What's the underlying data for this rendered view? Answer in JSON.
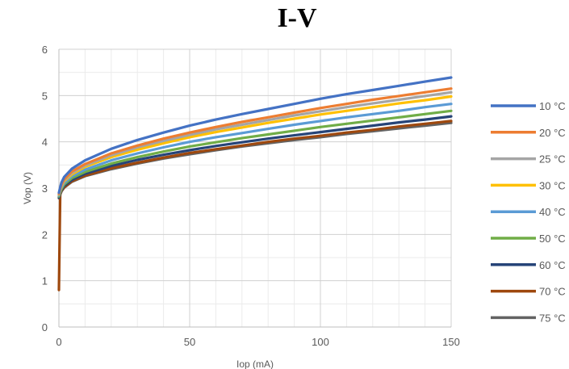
{
  "chart_data": {
    "type": "line",
    "title": "I-V",
    "xlabel": "Iop (mA)",
    "ylabel": "Vop (V)",
    "xlim": [
      0,
      150
    ],
    "ylim": [
      0,
      6
    ],
    "x_ticks": [
      "0",
      "50",
      "100",
      "150"
    ],
    "y_ticks": [
      "0",
      "1",
      "2",
      "3",
      "4",
      "5",
      "6"
    ],
    "grid": true,
    "legend_position": "right",
    "x": [
      0,
      0.5,
      1,
      2,
      5,
      10,
      20,
      30,
      40,
      50,
      60,
      70,
      80,
      90,
      100,
      110,
      120,
      130,
      140,
      150
    ],
    "series": [
      {
        "name": "10 °C",
        "color": "#4472C4",
        "values": [
          2.9,
          3.02,
          3.12,
          3.24,
          3.42,
          3.6,
          3.85,
          4.04,
          4.2,
          4.35,
          4.48,
          4.6,
          4.71,
          4.82,
          4.93,
          5.03,
          5.12,
          5.21,
          5.3,
          5.39
        ]
      },
      {
        "name": "20 °C",
        "color": "#ED7D31",
        "values": [
          2.88,
          2.99,
          3.08,
          3.19,
          3.36,
          3.52,
          3.75,
          3.92,
          4.07,
          4.2,
          4.32,
          4.43,
          4.53,
          4.63,
          4.73,
          4.82,
          4.91,
          4.99,
          5.07,
          5.15
        ]
      },
      {
        "name": "25 °C",
        "color": "#A5A5A5",
        "values": [
          2.87,
          2.98,
          3.06,
          3.17,
          3.33,
          3.49,
          3.71,
          3.88,
          4.02,
          4.15,
          4.27,
          4.37,
          4.47,
          4.57,
          4.66,
          4.75,
          4.83,
          4.91,
          4.99,
          5.07
        ]
      },
      {
        "name": "30 °C",
        "color": "#FFC000",
        "values": [
          2.86,
          2.96,
          3.04,
          3.15,
          3.3,
          3.46,
          3.67,
          3.83,
          3.97,
          4.1,
          4.21,
          4.31,
          4.41,
          4.5,
          4.59,
          4.67,
          4.75,
          4.83,
          4.9,
          4.98
        ]
      },
      {
        "name": "40 °C",
        "color": "#5B9BD5",
        "values": [
          2.84,
          2.94,
          3.01,
          3.11,
          3.26,
          3.4,
          3.6,
          3.75,
          3.88,
          4.0,
          4.1,
          4.19,
          4.28,
          4.37,
          4.45,
          4.53,
          4.6,
          4.67,
          4.75,
          4.82
        ]
      },
      {
        "name": "50 °C",
        "color": "#70AD47",
        "values": [
          2.82,
          2.91,
          2.98,
          3.08,
          3.22,
          3.35,
          3.53,
          3.67,
          3.79,
          3.9,
          3.99,
          4.08,
          4.16,
          4.24,
          4.32,
          4.39,
          4.46,
          4.53,
          4.6,
          4.67
        ]
      },
      {
        "name": "60 °C",
        "color": "#264478",
        "values": [
          2.8,
          2.89,
          2.96,
          3.05,
          3.18,
          3.31,
          3.48,
          3.61,
          3.72,
          3.82,
          3.91,
          3.99,
          4.07,
          4.14,
          4.21,
          4.28,
          4.35,
          4.42,
          4.48,
          4.55
        ]
      },
      {
        "name": "70 °C",
        "color": "#9E480E",
        "values": [
          0.8,
          2.87,
          2.94,
          3.02,
          3.15,
          3.27,
          3.43,
          3.55,
          3.66,
          3.76,
          3.84,
          3.92,
          4.0,
          4.07,
          4.13,
          4.2,
          4.26,
          4.33,
          4.39,
          4.45
        ]
      },
      {
        "name": "75 °C",
        "color": "#636363",
        "values": [
          2.78,
          2.86,
          2.93,
          3.01,
          3.14,
          3.26,
          3.41,
          3.53,
          3.64,
          3.73,
          3.82,
          3.9,
          3.97,
          4.04,
          4.1,
          4.17,
          4.23,
          4.29,
          4.35,
          4.41
        ]
      }
    ]
  }
}
